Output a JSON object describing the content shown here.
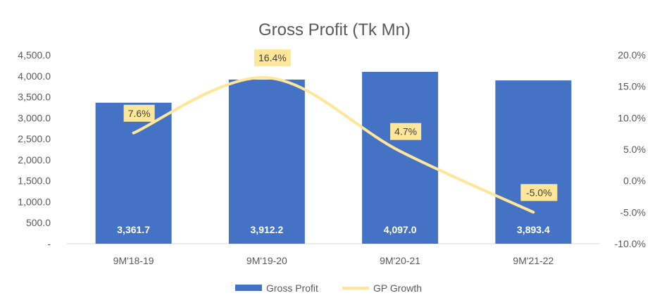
{
  "chart_data": {
    "type": "bar",
    "title": "Gross Profit (Tk Mn)",
    "categories": [
      "9M'18-19",
      "9M'19-20",
      "9M'20-21",
      "9M'21-22"
    ],
    "series": [
      {
        "name": "Gross Profit",
        "type": "bar",
        "axis": "left",
        "values": [
          3361.7,
          3912.2,
          4097.0,
          3893.4
        ],
        "labels": [
          "3,361.7",
          "3,912.2",
          "4,097.0",
          "3,893.4"
        ],
        "color": "#4472C4"
      },
      {
        "name": "GP Growth",
        "type": "line",
        "smooth": true,
        "axis": "right",
        "values": [
          7.6,
          16.4,
          4.7,
          -5.0
        ],
        "labels": [
          "7.6%",
          "16.4%",
          "4.7%",
          "-5.0%"
        ],
        "color": "#FFE699",
        "label_bg": "#FFE699"
      }
    ],
    "y_left": {
      "range": [
        0,
        4500
      ],
      "step": 500,
      "ticks": [
        "-",
        "500.0",
        "1,000.0",
        "1,500.0",
        "2,000.0",
        "2,500.0",
        "3,000.0",
        "3,500.0",
        "4,000.0",
        "4,500.0"
      ]
    },
    "y_right": {
      "range": [
        -10,
        20
      ],
      "step": 5,
      "ticks": [
        "-10.0%",
        "-5.0%",
        "0.0%",
        "5.0%",
        "10.0%",
        "15.0%",
        "20.0%"
      ]
    },
    "grid": false,
    "legend": "bottom"
  }
}
